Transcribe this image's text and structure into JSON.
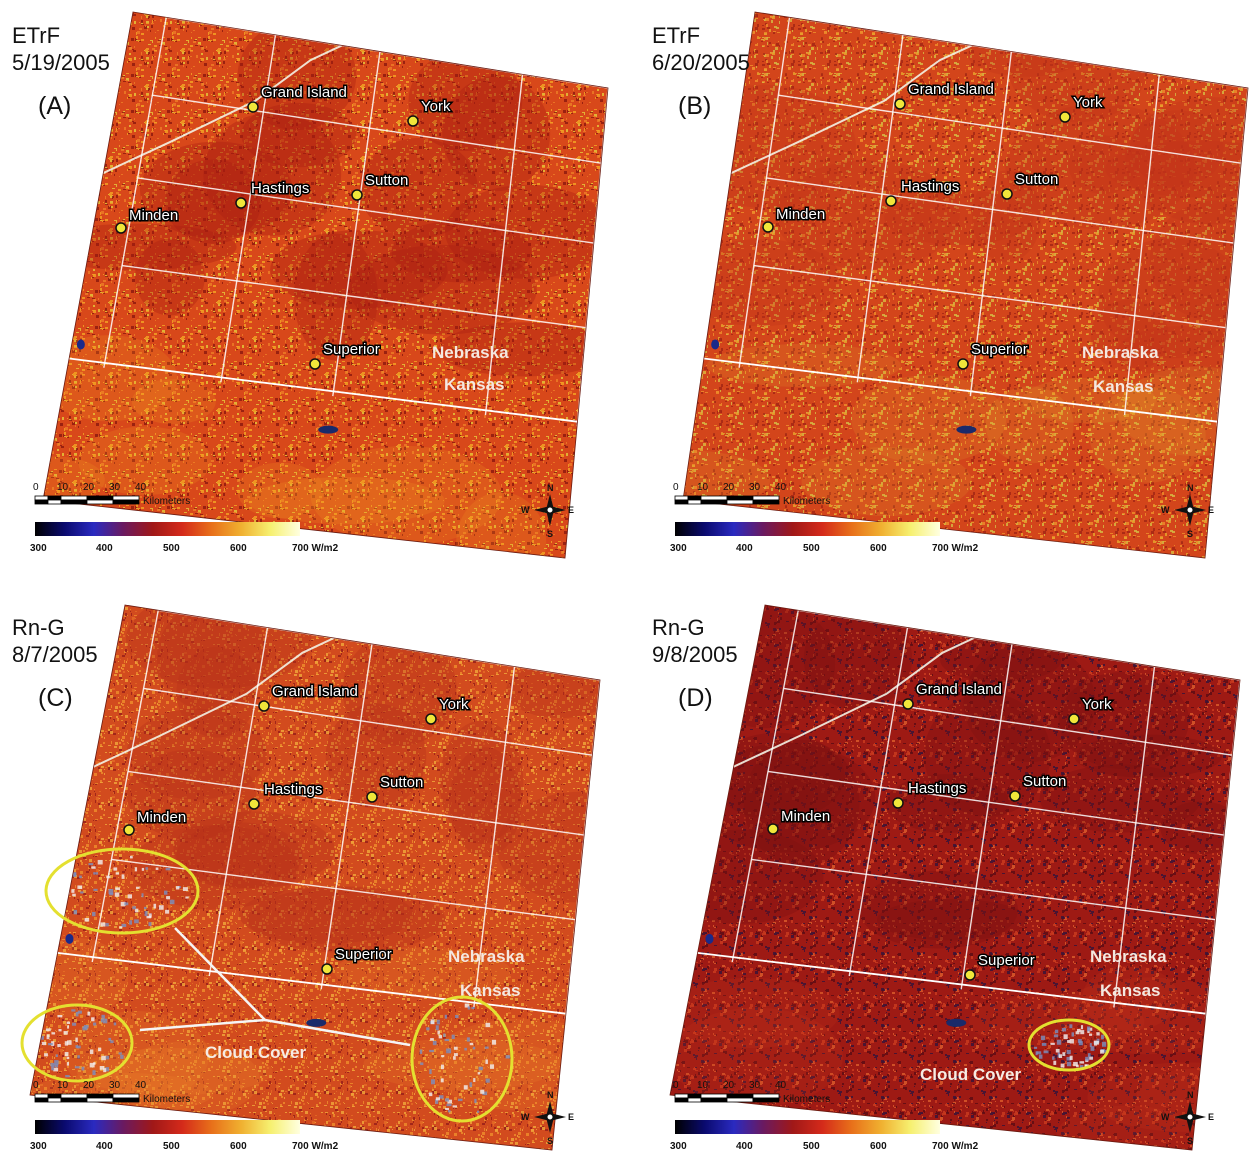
{
  "panels": [
    {
      "id": "A",
      "variable": "ETrF",
      "date": "5/19/2005",
      "letter": "(A)",
      "base_color": "#d8481a",
      "tint": "#a91d10",
      "speckle": [
        "#f2a023",
        "#e4c338",
        "#8f1a0e",
        "#ec7a26"
      ],
      "clouds": false
    },
    {
      "id": "B",
      "variable": "ETrF",
      "date": "6/20/2005",
      "letter": "(B)",
      "base_color": "#d3451b",
      "tint": "#c2351a",
      "speckle": [
        "#e5a32b",
        "#d6b842",
        "#a52714",
        "#ee8c2a"
      ],
      "clouds": false
    },
    {
      "id": "C",
      "variable": "Rn-G",
      "date": "8/7/2005",
      "letter": "(C)",
      "base_color": "#d24b1e",
      "tint": "#b8321a",
      "speckle": [
        "#ee8b2b",
        "#f0a43a",
        "#99201a",
        "#e46a26"
      ],
      "clouds": true,
      "cloud_label": "Cloud Cover"
    },
    {
      "id": "D",
      "variable": "Rn-G",
      "date": "9/8/2005",
      "letter": "(D)",
      "base_color": "#9e1a14",
      "tint": "#7c1010",
      "speckle": [
        "#c83a1e",
        "#5d0c14",
        "#d9592a",
        "#3a1438"
      ],
      "clouds": true,
      "cloud_label": "Cloud Cover"
    }
  ],
  "cities": [
    "Grand Island",
    "York",
    "Hastings",
    "Sutton",
    "Minden",
    "Superior"
  ],
  "states": {
    "north": "Nebraska",
    "south": "Kansas"
  },
  "scale_bar": {
    "ticks": [
      "0",
      "10",
      "20",
      "30",
      "40"
    ],
    "unit": "Kilometers"
  },
  "legend": {
    "ticks": [
      "300",
      "400",
      "500",
      "600",
      "700 W/m2"
    ],
    "colors": [
      "#000000",
      "#0a0a6e",
      "#2a2ac0",
      "#6a1a60",
      "#a01818",
      "#d42a1a",
      "#e8701a",
      "#f0b030",
      "#f6f070",
      "#ffffe0"
    ]
  },
  "compass": {
    "n": "N",
    "s": "S",
    "e": "E",
    "w": "W"
  }
}
